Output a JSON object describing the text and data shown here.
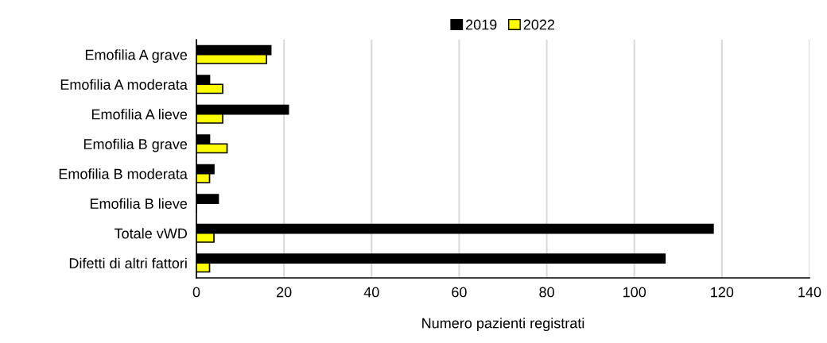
{
  "chart_data": {
    "type": "bar",
    "orientation": "horizontal",
    "xlabel": "Numero pazienti registrati",
    "categories": [
      "Emofilia A grave",
      "Emofilia A moderata",
      "Emofilia A lieve",
      "Emofilia B grave",
      "Emofilia B moderata",
      "Emofilia B lieve",
      "Totale vWD",
      "Difetti di altri fattori"
    ],
    "series": [
      {
        "name": "2019",
        "color": "#000000",
        "values": [
          17,
          3,
          21,
          3,
          4,
          5,
          118,
          107
        ]
      },
      {
        "name": "2022",
        "color": "#ffff00",
        "values": [
          16,
          6,
          6,
          7,
          3,
          0,
          4,
          3
        ]
      }
    ],
    "xlim": [
      0,
      140
    ],
    "xticks": [
      0,
      20,
      40,
      60,
      80,
      100,
      120,
      140
    ],
    "grid": "x",
    "legend": "top"
  }
}
